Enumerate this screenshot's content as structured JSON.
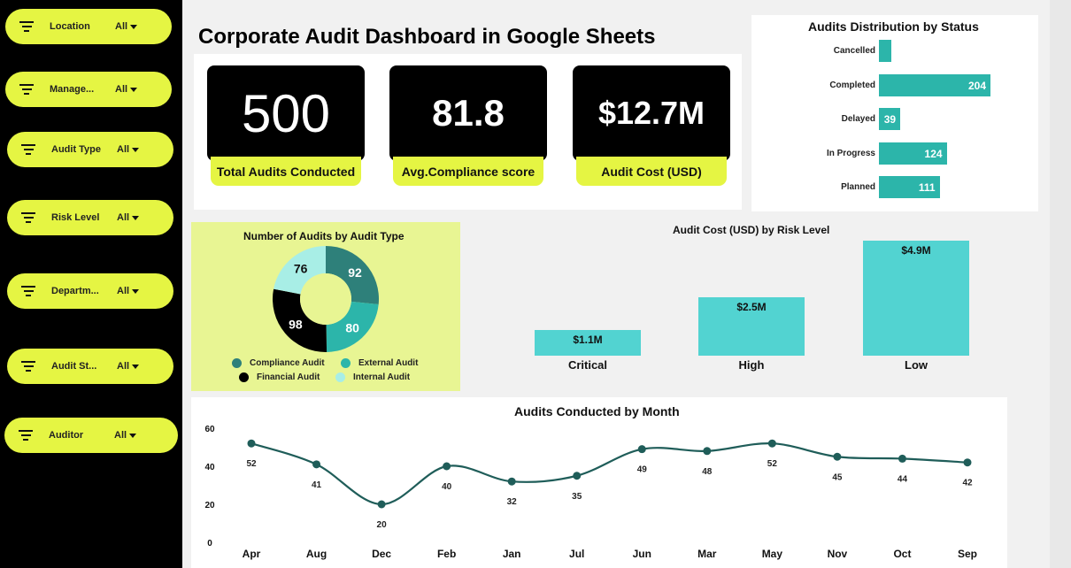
{
  "filters": [
    {
      "label": "Location",
      "value": "All"
    },
    {
      "label": "Manage...",
      "value": "All"
    },
    {
      "label": "Audit Type",
      "value": "All"
    },
    {
      "label": "Risk Level",
      "value": "All"
    },
    {
      "label": "Departm...",
      "value": "All"
    },
    {
      "label": "Audit St...",
      "value": "All"
    },
    {
      "label": "Auditor",
      "value": "All"
    }
  ],
  "dashboard": {
    "title": "Corporate Audit Dashboard in Google Sheets"
  },
  "kpis": [
    {
      "value": "500",
      "label": "Total Audits Conducted"
    },
    {
      "value": "81.8",
      "label": "Avg.Compliance score"
    },
    {
      "value": "$12.7M",
      "label": "Audit Cost (USD)"
    }
  ],
  "colors": {
    "accent": "#e5f543",
    "teal": "#2cb5aa",
    "light_teal": "#52d3d1",
    "line": "#1f5d59",
    "dark_teal": "#2e807a",
    "mint": "#a8eee6"
  },
  "chart_data": [
    {
      "type": "bar",
      "orientation": "horizontal",
      "title": "Audits Distribution by Status",
      "categories": [
        "Cancelled",
        "Completed",
        "Delayed",
        "In Progress",
        "Planned"
      ],
      "values": [
        22,
        204,
        39,
        124,
        111
      ],
      "labels": [
        "",
        "204",
        "39",
        "124",
        "111"
      ]
    },
    {
      "type": "pie",
      "style": "donut",
      "title": "Number of Audits by Audit Type",
      "categories": [
        "Compliance Audit",
        "External Audit",
        "Financial Audit",
        "Internal Audit"
      ],
      "values": [
        92,
        80,
        98,
        76
      ],
      "colors": [
        "#2e807a",
        "#2cb5aa",
        "#000000",
        "#a8eee6"
      ]
    },
    {
      "type": "bar",
      "title": "Audit Cost (USD) by Risk Level",
      "categories": [
        "Critical",
        "High",
        "Low"
      ],
      "values": [
        1.1,
        2.5,
        4.9
      ],
      "labels": [
        "$1.1M",
        "$2.5M",
        "$4.9M"
      ],
      "ylim": [
        0,
        5
      ]
    },
    {
      "type": "line",
      "title": "Audits Conducted  by Month",
      "categories": [
        "Apr",
        "Aug",
        "Dec",
        "Feb",
        "Jan",
        "Jul",
        "Jun",
        "Mar",
        "May",
        "Nov",
        "Oct",
        "Sep"
      ],
      "values": [
        52,
        41,
        20,
        40,
        32,
        35,
        49,
        48,
        52,
        45,
        44,
        42
      ],
      "yticks": [
        "0",
        "20",
        "40",
        "60"
      ],
      "ylim": [
        0,
        60
      ]
    }
  ]
}
